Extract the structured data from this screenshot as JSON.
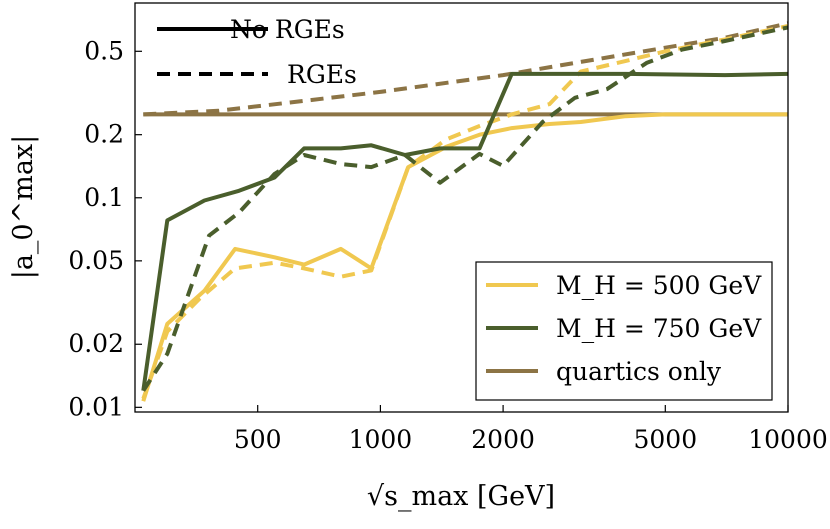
{
  "chart_data": {
    "type": "line",
    "xscale": "log",
    "yscale": "log",
    "xlim": [
      250,
      10000
    ],
    "ylim": [
      0.0095,
      0.85
    ],
    "grid": false,
    "xlabel": "√s_max [GeV]",
    "ylabel": "|a_0^max|",
    "x_ticks": [
      {
        "value": 500,
        "label": "500"
      },
      {
        "value": 1000,
        "label": "1000"
      },
      {
        "value": 2000,
        "label": "2000"
      },
      {
        "value": 5000,
        "label": "5000"
      },
      {
        "value": 10000,
        "label": "10000"
      }
    ],
    "y_ticks": [
      {
        "value": 0.01,
        "label": "0.01"
      },
      {
        "value": 0.02,
        "label": "0.02"
      },
      {
        "value": 0.05,
        "label": "0.05"
      },
      {
        "value": 0.1,
        "label": "0.1"
      },
      {
        "value": 0.2,
        "label": "0.2"
      },
      {
        "value": 0.5,
        "label": "0.5"
      }
    ],
    "style_legend": {
      "placement": "top-left",
      "entries": [
        {
          "label": "No RGEs",
          "dash": "solid"
        },
        {
          "label": "RGEs",
          "dash": "dashed"
        }
      ]
    },
    "color_legend": {
      "placement": "bottom-right",
      "entries": [
        {
          "label": "M_H = 500 GeV",
          "color": "#f0c850"
        },
        {
          "label": "M_H = 750 GeV",
          "color": "#4a5e2c"
        },
        {
          "label": "quartics only",
          "color": "#8c7445"
        }
      ]
    },
    "series": [
      {
        "color": "#8c7445",
        "dash": "dashed",
        "points": [
          [
            262,
            0.25
          ],
          [
            400,
            0.26
          ],
          [
            600,
            0.285
          ],
          [
            1000,
            0.32
          ],
          [
            2000,
            0.385
          ],
          [
            3000,
            0.44
          ],
          [
            5000,
            0.52
          ],
          [
            7000,
            0.58
          ],
          [
            10000,
            0.68
          ]
        ]
      },
      {
        "color": "#8c7445",
        "dash": "solid",
        "points": [
          [
            262,
            0.25
          ],
          [
            10000,
            0.25
          ]
        ]
      },
      {
        "color": "#f0c850",
        "dash": "solid",
        "points": [
          [
            262,
            0.0107
          ],
          [
            300,
            0.025
          ],
          [
            370,
            0.036
          ],
          [
            440,
            0.057
          ],
          [
            550,
            0.052
          ],
          [
            650,
            0.048
          ],
          [
            800,
            0.057
          ],
          [
            950,
            0.046
          ],
          [
            1170,
            0.14
          ],
          [
            1450,
            0.175
          ],
          [
            1750,
            0.2
          ],
          [
            2100,
            0.215
          ],
          [
            2600,
            0.225
          ],
          [
            3100,
            0.23
          ],
          [
            4000,
            0.245
          ],
          [
            5000,
            0.25
          ],
          [
            10000,
            0.25
          ]
        ]
      },
      {
        "color": "#f0c850",
        "dash": "dashed",
        "points": [
          [
            262,
            0.011
          ],
          [
            300,
            0.023
          ],
          [
            360,
            0.033
          ],
          [
            440,
            0.046
          ],
          [
            550,
            0.049
          ],
          [
            650,
            0.046
          ],
          [
            800,
            0.042
          ],
          [
            950,
            0.045
          ],
          [
            1170,
            0.14
          ],
          [
            1450,
            0.19
          ],
          [
            1750,
            0.22
          ],
          [
            2100,
            0.25
          ],
          [
            2600,
            0.28
          ],
          [
            3100,
            0.4
          ],
          [
            4000,
            0.45
          ],
          [
            5000,
            0.5
          ],
          [
            7000,
            0.57
          ],
          [
            10000,
            0.66
          ]
        ]
      },
      {
        "color": "#4a5e2c",
        "dash": "solid",
        "points": [
          [
            262,
            0.012
          ],
          [
            300,
            0.078
          ],
          [
            370,
            0.097
          ],
          [
            450,
            0.108
          ],
          [
            550,
            0.125
          ],
          [
            650,
            0.172
          ],
          [
            800,
            0.172
          ],
          [
            950,
            0.178
          ],
          [
            1150,
            0.16
          ],
          [
            1400,
            0.172
          ],
          [
            1750,
            0.172
          ],
          [
            2100,
            0.39
          ],
          [
            3000,
            0.39
          ],
          [
            4000,
            0.39
          ],
          [
            7000,
            0.385
          ],
          [
            10000,
            0.39
          ]
        ]
      },
      {
        "color": "#4a5e2c",
        "dash": "dashed",
        "points": [
          [
            262,
            0.012
          ],
          [
            300,
            0.018
          ],
          [
            380,
            0.066
          ],
          [
            450,
            0.085
          ],
          [
            550,
            0.13
          ],
          [
            650,
            0.16
          ],
          [
            800,
            0.145
          ],
          [
            950,
            0.14
          ],
          [
            1150,
            0.16
          ],
          [
            1400,
            0.118
          ],
          [
            1750,
            0.162
          ],
          [
            2000,
            0.142
          ],
          [
            2500,
            0.23
          ],
          [
            3000,
            0.3
          ],
          [
            3600,
            0.33
          ],
          [
            4500,
            0.44
          ],
          [
            5500,
            0.51
          ],
          [
            7000,
            0.56
          ],
          [
            10000,
            0.65
          ]
        ]
      }
    ]
  }
}
